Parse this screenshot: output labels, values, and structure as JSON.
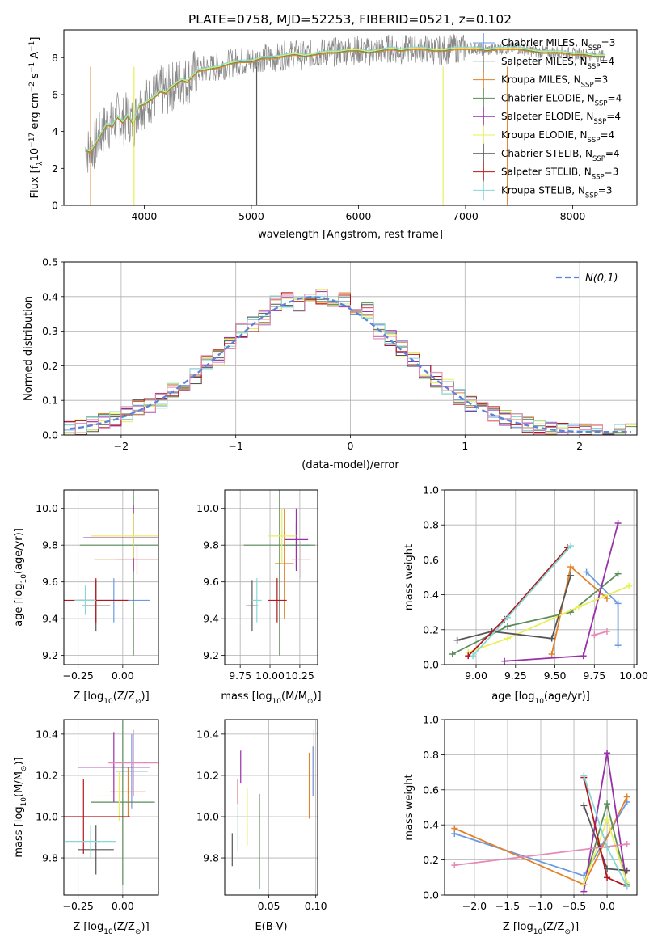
{
  "title": "PLATE=0758, MJD=52253, FIBERID=0521, z=0.102",
  "colors": [
    "#6a9ae0",
    "#e3822a",
    "#5c8c5c",
    "#9a2faa",
    "#e8f05a",
    "#555555",
    "#b5171d",
    "#86d8d6",
    "#e68ab5",
    "#888888"
  ],
  "legend_spectrum": [
    {
      "label": "Chabrier MILES, N",
      "sub": "SSP",
      "rest": "=3",
      "color": "#6a9ae0"
    },
    {
      "label": "Salpeter MILES, N",
      "sub": "SSP",
      "rest": "=4",
      "color": "#888888"
    },
    {
      "label": "Kroupa MILES, N",
      "sub": "SSP",
      "rest": "=3",
      "color": "#e3822a"
    },
    {
      "label": "Chabrier ELODIE, N",
      "sub": "SSP",
      "rest": "=4",
      "color": "#5c8c5c"
    },
    {
      "label": "Salpeter ELODIE, N",
      "sub": "SSP",
      "rest": "=4",
      "color": "#9a2faa"
    },
    {
      "label": "Kroupa ELODIE, N",
      "sub": "SSP",
      "rest": "=4",
      "color": "#e8f05a"
    },
    {
      "label": "Chabrier STELIB, N",
      "sub": "SSP",
      "rest": "=4",
      "color": "#555555"
    },
    {
      "label": "Salpeter STELIB, N",
      "sub": "SSP",
      "rest": "=3",
      "color": "#b5171d"
    },
    {
      "label": "Kroupa STELIB, N",
      "sub": "SSP",
      "rest": "=3",
      "color": "#86d8d6"
    }
  ],
  "chart_data": [
    {
      "type": "line",
      "xlabel": "wavelength [Angstrom, rest frame]",
      "ylabel": "Flux [f",
      "ylabel_sub": "λ",
      "ylabel_rest": "10",
      "ylabel_exp": "−17",
      "ylabel_tail": " erg cm",
      "ylabel_exp2": "−2",
      "ylabel_tail2": " s",
      "ylabel_exp3": "−1",
      "ylabel_tail3": " A",
      "ylabel_exp4": "−1",
      "ylabel_end": "]",
      "xlim": [
        3250,
        8600
      ],
      "ylim": [
        0,
        9.5
      ],
      "xticks": [
        "4000",
        "5000",
        "6000",
        "7000",
        "8000"
      ],
      "xtick_values": [
        4000,
        5000,
        6000,
        7000,
        8000
      ],
      "yticks": [
        "0",
        "2",
        "4",
        "6",
        "8"
      ],
      "ytick_values": [
        0,
        2,
        4,
        6,
        8
      ],
      "x": [
        3450,
        3500,
        3550,
        3600,
        3650,
        3700,
        3750,
        3800,
        3850,
        3900,
        3950,
        4000,
        4050,
        4100,
        4150,
        4200,
        4250,
        4300,
        4350,
        4400,
        4450,
        4500,
        4600,
        4700,
        4800,
        4900,
        5000,
        5100,
        5200,
        5300,
        5400,
        5500,
        5600,
        5700,
        5800,
        5900,
        6000,
        6100,
        6200,
        6300,
        6400,
        6500,
        6600,
        6700,
        6800,
        6900,
        7000,
        7100,
        7200,
        7300,
        7400,
        7500,
        7600,
        7700,
        7800,
        7900,
        8000,
        8100,
        8200,
        8300
      ],
      "series": [
        {
          "name": "model",
          "values": [
            3.0,
            2.9,
            3.4,
            3.9,
            4.4,
            4.3,
            4.8,
            4.5,
            4.9,
            4.4,
            5.4,
            5.5,
            5.7,
            5.9,
            6.2,
            6.1,
            6.4,
            6.6,
            6.8,
            6.7,
            7.0,
            7.3,
            7.4,
            7.5,
            7.7,
            7.8,
            7.8,
            8.0,
            8.0,
            8.1,
            8.2,
            8.1,
            8.2,
            8.3,
            8.3,
            8.4,
            8.4,
            8.3,
            8.4,
            8.5,
            8.4,
            8.5,
            8.5,
            8.4,
            8.4,
            8.5,
            8.5,
            8.5,
            8.4,
            8.5,
            8.5,
            8.5,
            8.4,
            8.3,
            8.3,
            8.3,
            8.2,
            8.2,
            8.1,
            8.1
          ]
        }
      ]
    },
    {
      "type": "bar",
      "xlabel": "(data-model)/error",
      "ylabel": "Normed distribution",
      "xlim": [
        -2.5,
        2.5
      ],
      "ylim": [
        0,
        0.5
      ],
      "xticks": [
        "−2",
        "−1",
        "0",
        "1",
        "2"
      ],
      "xtick_values": [
        -2,
        -1,
        0,
        1,
        2
      ],
      "yticks": [
        "0.0",
        "0.1",
        "0.2",
        "0.3",
        "0.4",
        "0.5"
      ],
      "ytick_values": [
        0,
        0.1,
        0.2,
        0.3,
        0.4,
        0.5
      ],
      "legend": "N(0,1)",
      "bin_width": 0.1,
      "bin_start": -2.5,
      "reference": [
        0.018,
        0.022,
        0.028,
        0.036,
        0.045,
        0.056,
        0.07,
        0.085,
        0.104,
        0.125,
        0.15,
        0.175,
        0.202,
        0.231,
        0.26,
        0.29,
        0.32,
        0.345,
        0.366,
        0.382,
        0.394,
        0.399,
        0.397,
        0.389,
        0.374,
        0.354,
        0.33,
        0.303,
        0.274,
        0.244,
        0.214,
        0.186,
        0.159,
        0.134,
        0.111,
        0.09,
        0.072,
        0.057,
        0.045,
        0.035,
        0.027,
        0.021,
        0.016,
        0.012,
        0.01,
        0.009,
        0.009,
        0.009,
        0.009,
        0.009
      ],
      "series_values": [
        0.02,
        0.022,
        0.03,
        0.04,
        0.048,
        0.06,
        0.08,
        0.085,
        0.1,
        0.13,
        0.15,
        0.17,
        0.21,
        0.225,
        0.26,
        0.3,
        0.32,
        0.34,
        0.38,
        0.39,
        0.38,
        0.41,
        0.4,
        0.38,
        0.39,
        0.34,
        0.36,
        0.3,
        0.28,
        0.25,
        0.22,
        0.18,
        0.16,
        0.14,
        0.11,
        0.09,
        0.08,
        0.06,
        0.05,
        0.04,
        0.03,
        0.02,
        0.015,
        0.012,
        0.01,
        0.01,
        0.01,
        0.01,
        0.01,
        0.01
      ]
    },
    {
      "type": "scatter",
      "xlabel": "Z [log",
      "xlabel_sub": "10",
      "xlabel_rest": "(Z/Z",
      "xlabel_sub2": "⊙",
      "xlabel_end": ")]",
      "ylabel": "age  [log",
      "ylabel_sub": "10",
      "ylabel_rest": "(age/yr)]",
      "xlim": [
        -0.33,
        0.2
      ],
      "ylim": [
        9.15,
        10.1
      ],
      "xticks": [
        "−0.25",
        "0.00"
      ],
      "xtick_values": [
        -0.25,
        0.0
      ],
      "yticks": [
        "9.2",
        "9.4",
        "9.6",
        "9.8",
        "10.0"
      ],
      "ytick_values": [
        9.2,
        9.4,
        9.6,
        9.8,
        10.0
      ],
      "points": [
        {
          "x": -0.05,
          "y": 9.5,
          "xerr": 0.2,
          "yerr": 0.12,
          "color": "#6a9ae0"
        },
        {
          "x": 0.06,
          "y": 9.72,
          "xerr": 0.22,
          "yerr": 0.07,
          "color": "#e3822a"
        },
        {
          "x": 0.06,
          "y": 9.8,
          "xerr": 0.3,
          "yerr": 0.6,
          "color": "#5c8c5c"
        },
        {
          "x": 0.06,
          "y": 9.84,
          "xerr": 0.28,
          "yerr": 0.18,
          "color": "#9a2faa"
        },
        {
          "x": 0.06,
          "y": 9.85,
          "xerr": 0.24,
          "yerr": 0.12,
          "color": "#e8f05a"
        },
        {
          "x": -0.15,
          "y": 9.47,
          "xerr": 0.08,
          "yerr": 0.14,
          "color": "#555555"
        },
        {
          "x": -0.15,
          "y": 9.5,
          "xerr": 0.18,
          "yerr": 0.12,
          "color": "#b5171d"
        },
        {
          "x": -0.21,
          "y": 9.5,
          "xerr": 0.06,
          "yerr": 0.08,
          "color": "#86d8d6"
        },
        {
          "x": 0.08,
          "y": 9.72,
          "xerr": 0.12,
          "yerr": 0.08,
          "color": "#e68ab5"
        }
      ]
    },
    {
      "type": "scatter",
      "xlabel": "mass [log",
      "xlabel_sub": "10",
      "xlabel_rest": "(M/M",
      "xlabel_sub2": "⊙",
      "xlabel_end": ")]",
      "xlim": [
        9.62,
        10.4
      ],
      "ylim": [
        9.15,
        10.1
      ],
      "xticks": [
        "9.75",
        "10.00",
        "10.25"
      ],
      "xtick_values": [
        9.75,
        10.0,
        10.25
      ],
      "yticks": [
        "9.2",
        "9.4",
        "9.6",
        "9.8",
        "10.0"
      ],
      "ytick_values": [
        9.2,
        9.4,
        9.6,
        9.8,
        10.0
      ],
      "points": [
        {
          "x": 10.22,
          "y": 9.8,
          "xerr": 0.12,
          "yerr": 0.12,
          "color": "#6a9ae0"
        },
        {
          "x": 10.12,
          "y": 9.7,
          "xerr": 0.08,
          "yerr": 0.3,
          "color": "#e3822a"
        },
        {
          "x": 10.08,
          "y": 9.8,
          "xerr": 0.3,
          "yerr": 0.6,
          "color": "#5c8c5c"
        },
        {
          "x": 10.22,
          "y": 9.83,
          "xerr": 0.1,
          "yerr": 0.17,
          "color": "#9a2faa"
        },
        {
          "x": 10.1,
          "y": 9.85,
          "xerr": 0.12,
          "yerr": 0.15,
          "color": "#e8f05a"
        },
        {
          "x": 9.85,
          "y": 9.47,
          "xerr": 0.05,
          "yerr": 0.14,
          "color": "#555555"
        },
        {
          "x": 10.06,
          "y": 9.5,
          "xerr": 0.08,
          "yerr": 0.12,
          "color": "#b5171d"
        },
        {
          "x": 9.89,
          "y": 9.5,
          "xerr": 0.04,
          "yerr": 0.12,
          "color": "#86d8d6"
        },
        {
          "x": 10.26,
          "y": 9.72,
          "xerr": 0.08,
          "yerr": 0.1,
          "color": "#e68ab5"
        }
      ]
    },
    {
      "type": "line",
      "xlabel": "age  [log",
      "xlabel_sub": "10",
      "xlabel_rest": "(age/yr)]",
      "ylabel": "mass weight",
      "xlim": [
        8.8,
        10.02
      ],
      "ylim": [
        0,
        1
      ],
      "xticks": [
        "9.00",
        "9.25",
        "9.50",
        "9.75",
        "10.00"
      ],
      "xtick_values": [
        9.0,
        9.25,
        9.5,
        9.75,
        10.0
      ],
      "yticks": [
        "0.0",
        "0.2",
        "0.4",
        "0.6",
        "0.8",
        "1.0"
      ],
      "ytick_values": [
        0,
        0.2,
        0.4,
        0.6,
        0.8,
        1.0
      ],
      "series": [
        {
          "x": [
            9.7,
            9.9,
            9.9
          ],
          "y": [
            0.53,
            0.35,
            0.11
          ],
          "color": "#6a9ae0"
        },
        {
          "x": [
            9.48,
            9.6,
            9.83
          ],
          "y": [
            0.06,
            0.56,
            0.38
          ],
          "color": "#e3822a"
        },
        {
          "x": [
            8.85,
            9.2,
            9.6,
            9.9
          ],
          "y": [
            0.06,
            0.22,
            0.3,
            0.52
          ],
          "color": "#5c8c5c"
        },
        {
          "x": [
            9.18,
            9.68,
            9.9
          ],
          "y": [
            0.02,
            0.05,
            0.81
          ],
          "color": "#9a2faa"
        },
        {
          "x": [
            8.95,
            9.2,
            9.65,
            9.97
          ],
          "y": [
            0.07,
            0.15,
            0.33,
            0.45
          ],
          "color": "#e8f05a"
        },
        {
          "x": [
            8.88,
            9.1,
            9.48,
            9.6
          ],
          "y": [
            0.14,
            0.19,
            0.15,
            0.51
          ],
          "color": "#555555"
        },
        {
          "x": [
            8.95,
            9.18,
            9.58
          ],
          "y": [
            0.05,
            0.26,
            0.67
          ],
          "color": "#b5171d"
        },
        {
          "x": [
            8.98,
            9.2,
            9.6
          ],
          "y": [
            0.05,
            0.27,
            0.68
          ],
          "color": "#86d8d6"
        },
        {
          "x": [
            9.75,
            9.83
          ],
          "y": [
            0.17,
            0.19
          ],
          "color": "#e68ab5"
        }
      ]
    },
    {
      "type": "scatter",
      "xlabel": "Z [log",
      "xlabel_sub": "10",
      "xlabel_rest": "(Z/Z",
      "xlabel_sub2": "⊙",
      "xlabel_end": ")]",
      "ylabel": "mass [log",
      "ylabel_sub": "10",
      "ylabel_rest": "(M/M",
      "ylabel_sub2": "⊙",
      "ylabel_end": ")]",
      "xlim": [
        -0.33,
        0.2
      ],
      "ylim": [
        9.62,
        10.47
      ],
      "xticks": [
        "−0.25",
        "0.00"
      ],
      "xtick_values": [
        -0.25,
        0.0
      ],
      "yticks": [
        "9.8",
        "10.0",
        "10.2",
        "10.4"
      ],
      "ytick_values": [
        9.8,
        10.0,
        10.2,
        10.4
      ],
      "points": [
        {
          "x": 0.05,
          "y": 10.22,
          "xerr": 0.09,
          "yerr": 0.18,
          "color": "#6a9ae0"
        },
        {
          "x": 0.03,
          "y": 10.12,
          "xerr": 0.1,
          "yerr": 0.12,
          "color": "#e3822a"
        },
        {
          "x": 0.0,
          "y": 10.07,
          "xerr": 0.18,
          "yerr": 0.4,
          "color": "#5c8c5c"
        },
        {
          "x": -0.05,
          "y": 10.24,
          "xerr": 0.2,
          "yerr": 0.17,
          "color": "#9a2faa"
        },
        {
          "x": -0.02,
          "y": 10.1,
          "xerr": 0.12,
          "yerr": 0.12,
          "color": "#e8f05a"
        },
        {
          "x": -0.15,
          "y": 9.84,
          "xerr": 0.1,
          "yerr": 0.12,
          "color": "#555555"
        },
        {
          "x": -0.22,
          "y": 10.0,
          "xerr": 0.26,
          "yerr": 0.18,
          "color": "#b5171d"
        },
        {
          "x": -0.18,
          "y": 9.88,
          "xerr": 0.14,
          "yerr": 0.08,
          "color": "#86d8d6"
        },
        {
          "x": 0.06,
          "y": 10.26,
          "xerr": 0.14,
          "yerr": 0.16,
          "color": "#e68ab5"
        }
      ]
    },
    {
      "type": "scatter",
      "xlabel": "E(B-V)",
      "xlim": [
        0.003,
        0.102
      ],
      "ylim": [
        9.62,
        10.47
      ],
      "xticks": [
        "0.05",
        "0.10"
      ],
      "xtick_values": [
        0.05,
        0.1
      ],
      "yticks": [
        "9.8",
        "10.0",
        "10.2",
        "10.4"
      ],
      "ytick_values": [
        9.8,
        10.0,
        10.2,
        10.4
      ],
      "points": [
        {
          "x": 0.097,
          "y": 10.22,
          "yerr": 0.12,
          "color": "#6a9ae0"
        },
        {
          "x": 0.093,
          "y": 10.15,
          "yerr": 0.16,
          "color": "#e3822a"
        },
        {
          "x": 0.04,
          "y": 9.88,
          "yerr": 0.23,
          "color": "#5c8c5c"
        },
        {
          "x": 0.02,
          "y": 10.24,
          "yerr": 0.08,
          "color": "#9a2faa"
        },
        {
          "x": 0.027,
          "y": 10.0,
          "yerr": 0.14,
          "color": "#e8f05a"
        },
        {
          "x": 0.011,
          "y": 9.84,
          "yerr": 0.08,
          "color": "#555555"
        },
        {
          "x": 0.017,
          "y": 10.12,
          "yerr": 0.06,
          "color": "#b5171d"
        },
        {
          "x": 0.017,
          "y": 9.94,
          "yerr": 0.11,
          "color": "#86d8d6"
        },
        {
          "x": 0.098,
          "y": 10.26,
          "yerr": 0.16,
          "color": "#e68ab5"
        }
      ]
    },
    {
      "type": "line",
      "xlabel": "Z [log",
      "xlabel_sub": "10",
      "xlabel_rest": "(Z/Z",
      "xlabel_sub2": "⊙",
      "xlabel_end": ")]",
      "ylabel": "mass weight",
      "xlim": [
        -2.45,
        0.45
      ],
      "ylim": [
        0,
        1
      ],
      "xticks": [
        "−2.0",
        "−1.5",
        "−1.0",
        "−0.5",
        "0.0"
      ],
      "xtick_values": [
        -2.0,
        -1.5,
        -1.0,
        -0.5,
        0.0
      ],
      "yticks": [
        "0.0",
        "0.2",
        "0.4",
        "0.6",
        "0.8",
        "1.0"
      ],
      "ytick_values": [
        0,
        0.2,
        0.4,
        0.6,
        0.8,
        1.0
      ],
      "series": [
        {
          "x": [
            -2.3,
            -0.35,
            0.3
          ],
          "y": [
            0.35,
            0.11,
            0.53
          ],
          "color": "#6a9ae0"
        },
        {
          "x": [
            -2.3,
            -0.35,
            0.3
          ],
          "y": [
            0.38,
            0.06,
            0.56
          ],
          "color": "#e3822a"
        },
        {
          "x": [
            -0.35,
            0.0,
            0.3
          ],
          "y": [
            0.06,
            0.52,
            0.06
          ],
          "color": "#5c8c5c"
        },
        {
          "x": [
            -0.35,
            0.0,
            0.3
          ],
          "y": [
            0.02,
            0.81,
            0.05
          ],
          "color": "#9a2faa"
        },
        {
          "x": [
            -0.35,
            0.0,
            0.3
          ],
          "y": [
            0.06,
            0.43,
            0.07
          ],
          "color": "#e8f05a"
        },
        {
          "x": [
            -0.35,
            0.0,
            0.3
          ],
          "y": [
            0.51,
            0.15,
            0.14
          ],
          "color": "#555555"
        },
        {
          "x": [
            -0.35,
            0.0,
            0.3
          ],
          "y": [
            0.67,
            0.1,
            0.05
          ],
          "color": "#b5171d"
        },
        {
          "x": [
            -0.35,
            0.0,
            0.3
          ],
          "y": [
            0.68,
            0.27,
            0.05
          ],
          "color": "#86d8d6"
        },
        {
          "x": [
            -2.3,
            0.3
          ],
          "y": [
            0.17,
            0.29
          ],
          "color": "#e68ab5"
        }
      ]
    }
  ]
}
